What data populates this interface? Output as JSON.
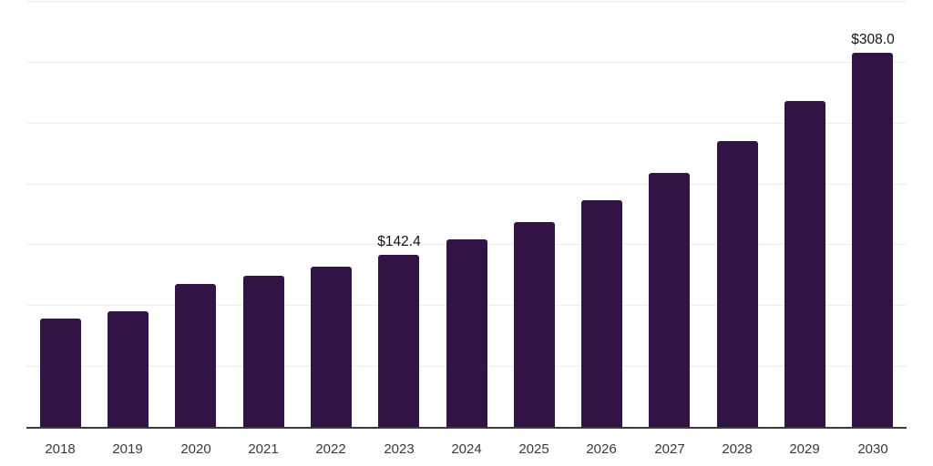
{
  "chart_data": {
    "type": "bar",
    "title": "",
    "xlabel": "",
    "ylabel": "",
    "categories": [
      "2018",
      "2019",
      "2020",
      "2021",
      "2022",
      "2023",
      "2024",
      "2025",
      "2026",
      "2027",
      "2028",
      "2029",
      "2030"
    ],
    "values": [
      90.0,
      95.7,
      118.1,
      124.9,
      132.2,
      142.4,
      154.8,
      168.8,
      187.2,
      209.4,
      235.4,
      268.5,
      308.0
    ],
    "data_labels": {
      "2023": "$142.4",
      "2030": "$308.0"
    },
    "value_prefix": "$",
    "ylim": [
      0,
      350
    ],
    "gridline_step": 50,
    "grid": "horizontal-only",
    "legend": "none",
    "colors": {
      "bar": "#321345",
      "axis_line": "#3b3b3b",
      "gridline": "#ededf0",
      "tick_label": "#3a3a3a",
      "data_label": "#141414",
      "background": "#ffffff"
    }
  }
}
